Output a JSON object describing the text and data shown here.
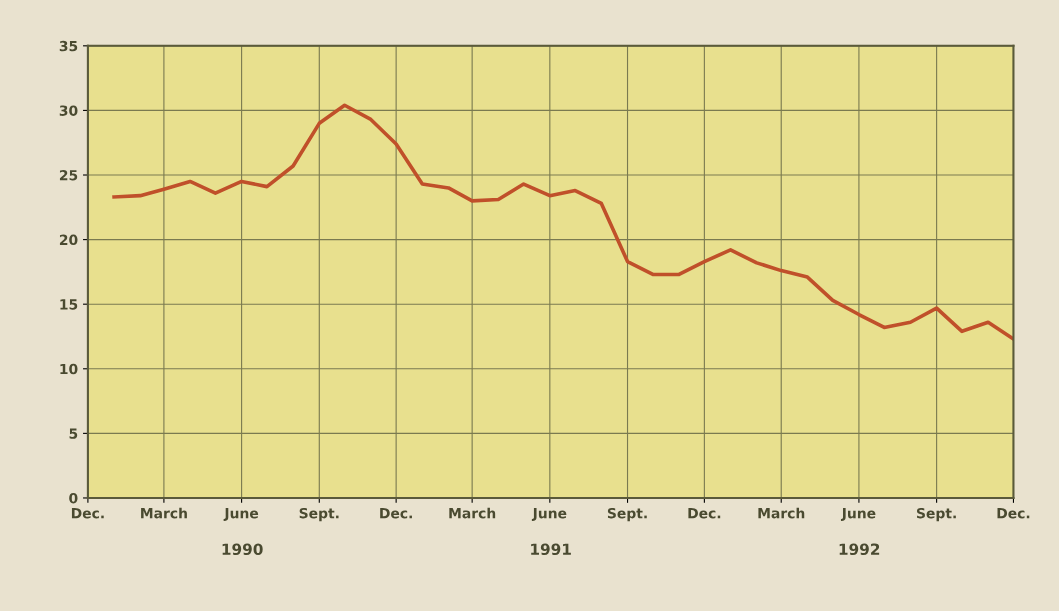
{
  "chart_data": {
    "type": "line",
    "x": [
      "1990-01",
      "1990-02",
      "1990-03",
      "1990-04",
      "1990-05",
      "1990-06",
      "1990-07",
      "1990-08",
      "1990-09",
      "1990-10",
      "1990-11",
      "1990-12",
      "1991-01",
      "1991-02",
      "1991-03",
      "1991-04",
      "1991-05",
      "1991-06",
      "1991-07",
      "1991-08",
      "1991-09",
      "1991-10",
      "1991-11",
      "1991-12",
      "1992-01",
      "1992-02",
      "1992-03",
      "1992-04",
      "1992-05",
      "1992-06",
      "1992-07",
      "1992-08",
      "1992-09",
      "1992-10",
      "1992-11",
      "1992-12"
    ],
    "series": [
      {
        "color": "#c0502a",
        "values": [
          23.3,
          23.4,
          23.9,
          24.5,
          23.6,
          24.5,
          24.1,
          25.7,
          29.0,
          30.4,
          29.3,
          27.4,
          24.3,
          24.0,
          23.0,
          23.1,
          24.3,
          23.4,
          23.8,
          22.8,
          18.3,
          17.3,
          17.3,
          18.3,
          19.2,
          18.2,
          17.6,
          17.1,
          15.3,
          14.2,
          13.2,
          13.6,
          14.7,
          12.9,
          13.6,
          12.3
        ]
      }
    ],
    "xlim": [
      "1989-12",
      "1992-12"
    ],
    "xticks": [
      {
        "value": "1989-12",
        "label": "Dec."
      },
      {
        "value": "1990-03",
        "label": "March"
      },
      {
        "value": "1990-06",
        "label": "June"
      },
      {
        "value": "1990-09",
        "label": "Sept."
      },
      {
        "value": "1990-12",
        "label": "Dec."
      },
      {
        "value": "1991-03",
        "label": "March"
      },
      {
        "value": "1991-06",
        "label": "June"
      },
      {
        "value": "1991-09",
        "label": "Sept."
      },
      {
        "value": "1991-12",
        "label": "Dec."
      },
      {
        "value": "1992-03",
        "label": "March"
      },
      {
        "value": "1992-06",
        "label": "June"
      },
      {
        "value": "1992-09",
        "label": "Sept."
      },
      {
        "value": "1992-12",
        "label": "Dec."
      }
    ],
    "ylim": [
      0,
      35
    ],
    "yticks": [
      0,
      5,
      10,
      15,
      20,
      25,
      30,
      35
    ],
    "annotations": [
      "1990",
      "1991",
      "1992"
    ],
    "grid": true,
    "line_style": "solid",
    "marker": "none"
  }
}
